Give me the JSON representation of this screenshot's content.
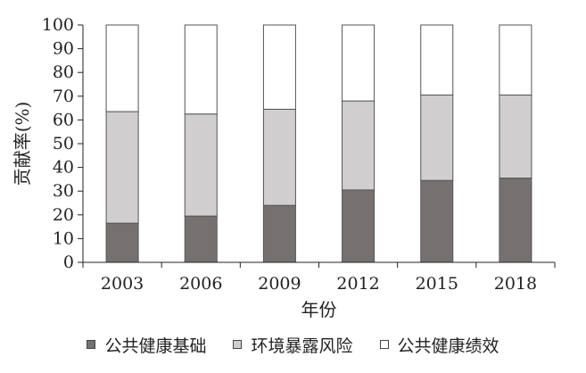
{
  "chart_data": {
    "type": "bar",
    "stacked": true,
    "categories": [
      "2003",
      "2006",
      "2009",
      "2012",
      "2015",
      "2018"
    ],
    "series": [
      {
        "name": "公共健康基础",
        "values": [
          16.5,
          19.5,
          24,
          30.5,
          34.5,
          35.5
        ],
        "color": "#767171"
      },
      {
        "name": "环境暴露风险",
        "values": [
          47,
          43,
          40.5,
          37.5,
          36,
          35
        ],
        "color": "#d0cece"
      },
      {
        "name": "公共健康绩效",
        "values": [
          36.5,
          37.5,
          35.5,
          32,
          29.5,
          29.5
        ],
        "color": "#ffffff"
      }
    ],
    "xlabel": "年份",
    "ylabel": "贡献率(%)",
    "ylim": [
      0,
      100
    ],
    "yticks": [
      0,
      10,
      20,
      30,
      40,
      50,
      60,
      70,
      80,
      90,
      100
    ],
    "grid": false,
    "legend_position": "bottom"
  }
}
